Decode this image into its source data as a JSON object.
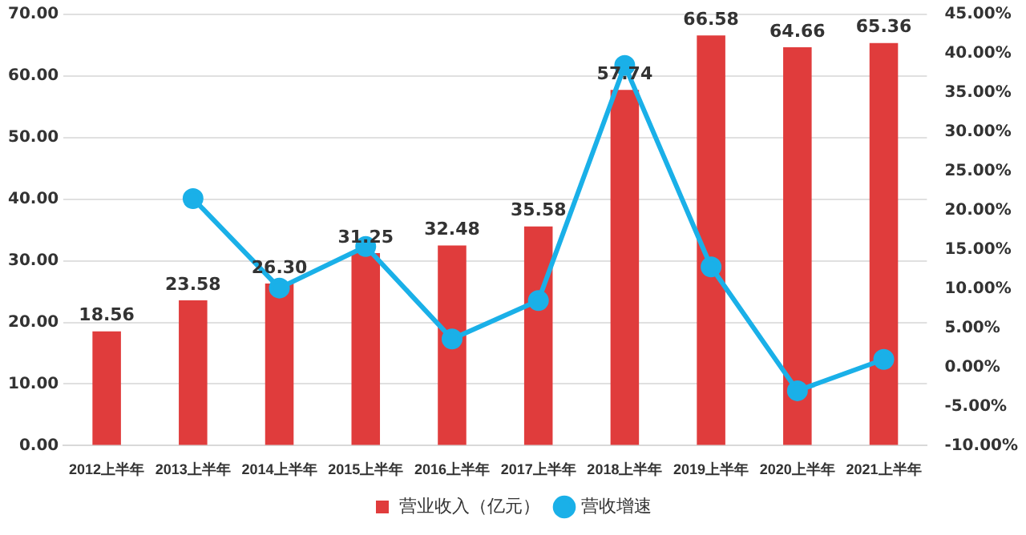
{
  "chart_data": {
    "type": "bar",
    "categories": [
      "2012上半年",
      "2013上半年",
      "2014上半年",
      "2015上半年",
      "2016上半年",
      "2017上半年",
      "2018上半年",
      "2019上半年",
      "2020上半年",
      "2021上半年"
    ],
    "series": [
      {
        "name": "营业收入（亿元）",
        "color": "#e03c3c",
        "values": [
          18.56,
          23.58,
          26.3,
          31.25,
          32.48,
          35.58,
          57.74,
          66.58,
          64.66,
          65.36
        ],
        "value_labels": [
          "18.56",
          "23.58",
          "26.30",
          "31.25",
          "32.48",
          "35.58",
          "57.74",
          "66.58",
          "64.66",
          "65.36"
        ]
      },
      {
        "name": "营收增速",
        "type": "line",
        "axis": "y2",
        "color": "#1ab0e8",
        "marker": "circle",
        "values": [
          null,
          21.5,
          10.1,
          15.4,
          3.6,
          8.5,
          38.5,
          12.8,
          -3.0,
          1.0
        ]
      }
    ],
    "ylim": [
      0,
      70
    ],
    "yticks": [
      {
        "value": 0,
        "label": "0.00"
      },
      {
        "value": 10,
        "label": "10.00"
      },
      {
        "value": 20,
        "label": "20.00"
      },
      {
        "value": 30,
        "label": "30.00"
      },
      {
        "value": 40,
        "label": "40.00"
      },
      {
        "value": 50,
        "label": "50.00"
      },
      {
        "value": 60,
        "label": "60.00"
      },
      {
        "value": 70,
        "label": "70.00"
      }
    ],
    "y2lim": [
      -10,
      45
    ],
    "y2ticks": [
      {
        "value": -10,
        "label": "-10.00%"
      },
      {
        "value": -5,
        "label": "-5.00%"
      },
      {
        "value": 0,
        "label": "0.00%"
      },
      {
        "value": 5,
        "label": "5.00%"
      },
      {
        "value": 10,
        "label": "10.00%"
      },
      {
        "value": 15,
        "label": "15.00%"
      },
      {
        "value": 20,
        "label": "20.00%"
      },
      {
        "value": 25,
        "label": "25.00%"
      },
      {
        "value": 30,
        "label": "30.00%"
      },
      {
        "value": 35,
        "label": "35.00%"
      },
      {
        "value": 40,
        "label": "40.00%"
      },
      {
        "value": 45,
        "label": "45.00%"
      }
    ],
    "grid": "y",
    "legend": "bottom"
  }
}
